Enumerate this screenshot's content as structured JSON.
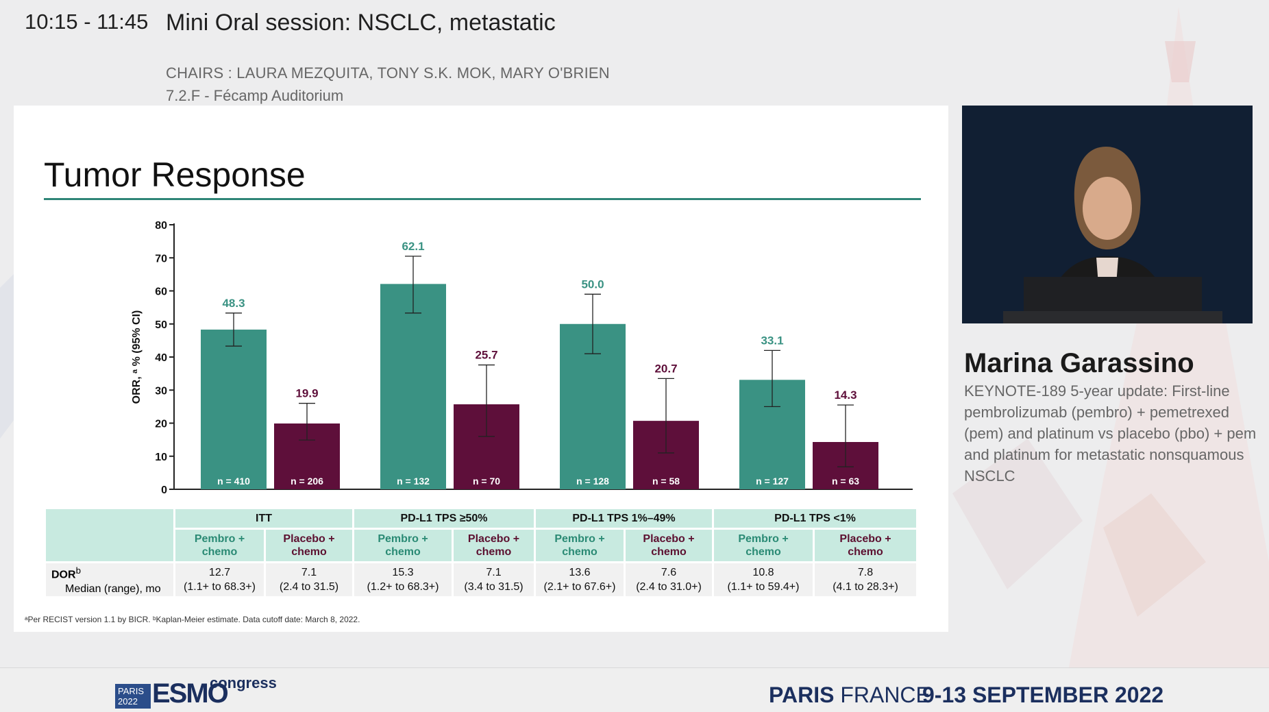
{
  "header": {
    "time": "10:15 - 11:45",
    "session_title": "Mini Oral session: NSCLC, metastatic",
    "chairs": "CHAIRS : LAURA MEZQUITA, TONY S.K. MOK, MARY O'BRIEN",
    "room": "7.2.F - Fécamp Auditorium"
  },
  "slide": {
    "title": "Tumor Response",
    "footnote": "ᵃPer RECIST version 1.1 by BICR. ᵇKaplan-Meier estimate. Data cutoff date: March 8, 2022."
  },
  "chart_data": {
    "type": "bar",
    "categories": [
      "ITT",
      "PD-L1 TPS ≥50%",
      "PD-L1 TPS 1%–49%",
      "PD-L1 TPS <1%"
    ],
    "series": [
      {
        "name": "Pembro + chemo",
        "values": [
          48.3,
          62.1,
          50.0,
          33.1
        ],
        "labels": [
          "48.3",
          "62.1",
          "50.0",
          "33.1"
        ],
        "ci_low": [
          43.3,
          53.3,
          41.0,
          25.0
        ],
        "ci_high": [
          53.3,
          70.5,
          59.0,
          42.0
        ],
        "n": [
          "n = 410",
          "n = 132",
          "n = 128",
          "n = 127"
        ],
        "color": "#3a9283"
      },
      {
        "name": "Placebo + chemo",
        "values": [
          19.9,
          25.7,
          20.7,
          14.3
        ],
        "labels": [
          "19.9",
          "25.7",
          "20.7",
          "14.3"
        ],
        "ci_low": [
          14.9,
          16.0,
          11.0,
          6.8
        ],
        "ci_high": [
          26.0,
          37.6,
          33.5,
          25.5
        ],
        "n": [
          "n = 206",
          "n = 70",
          "n = 58",
          "n = 63"
        ],
        "color": "#5e0f3a"
      }
    ],
    "ylabel": "ORR, ᵃ % (95% CI)",
    "yticks": [
      "0",
      "10",
      "20",
      "30",
      "40",
      "50",
      "60",
      "70",
      "80"
    ],
    "ylim": [
      0,
      80
    ],
    "grid": false,
    "legend": "none"
  },
  "table": {
    "groups": [
      "ITT",
      "PD-L1 TPS ≥50%",
      "PD-L1 TPS 1%–49%",
      "PD-L1 TPS <1%"
    ],
    "sub_pembro_1": "Pembro +",
    "sub_pembro_2": "chemo",
    "sub_placebo_1": "Placebo +",
    "sub_placebo_2": "chemo",
    "row_label_1": "DOR",
    "row_label_sup": "b",
    "row_label_2": "Median (range), mo",
    "cells": [
      {
        "median": "12.7",
        "range": "(1.1+ to 68.3+)"
      },
      {
        "median": "7.1",
        "range": "(2.4 to 31.5)"
      },
      {
        "median": "15.3",
        "range": "(1.2+ to 68.3+)"
      },
      {
        "median": "7.1",
        "range": "(3.4 to 31.5)"
      },
      {
        "median": "13.6",
        "range": "(2.1+ to 67.6+)"
      },
      {
        "median": "7.6",
        "range": "(2.4 to 31.0+)"
      },
      {
        "median": "10.8",
        "range": "(1.1+ to 59.4+)"
      },
      {
        "median": "7.8",
        "range": "(4.1 to 28.3+)"
      }
    ]
  },
  "speaker": {
    "name": "Marina Garassino",
    "talk_title": "KEYNOTE-189 5-year update: First-line pembrolizumab (pembro) + pemetrexed (pem) and platinum vs placebo (pbo) + pem and platinum for metastatic nonsquamous NSCLC"
  },
  "footer": {
    "logo_city": "PARIS",
    "logo_year": "2022",
    "logo_esmo": "ESMO",
    "logo_congress": "congress",
    "place_bold": "PARIS",
    "place_light": "FRANCE",
    "dates": "9-13 SEPTEMBER 2022"
  },
  "colors": {
    "pembro": "#3a9283",
    "placebo": "#5e0f3a",
    "accent": "#2f8577",
    "brand": "#1b2f5e"
  }
}
